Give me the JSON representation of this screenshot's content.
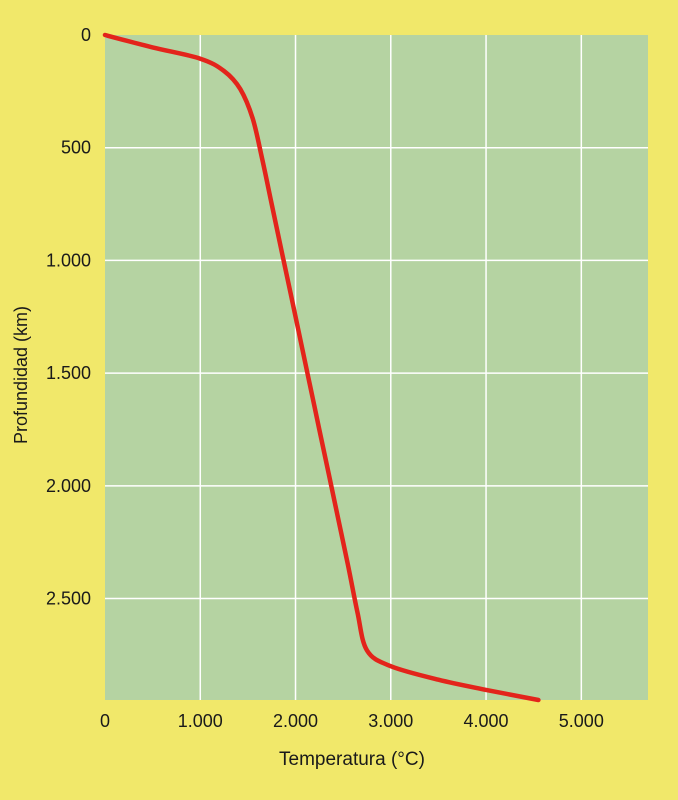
{
  "colors": {
    "page_background": "#f1e86a",
    "plot_background": "#b5d3a2",
    "grid": "#ffffff",
    "curve": "#e3241b",
    "text": "#1a1a1a"
  },
  "chart_data": {
    "type": "line",
    "xlabel": "Temperatura (°C)",
    "ylabel": "Profundidad (km)",
    "xlim": [
      0,
      5700
    ],
    "ylim": [
      0,
      2950
    ],
    "y_inverted": true,
    "grid": true,
    "x_ticks": [
      0,
      1000,
      2000,
      3000,
      4000,
      5000
    ],
    "x_tick_labels": [
      "0",
      "1.000",
      "2.000",
      "3.000",
      "4.000",
      "5.000"
    ],
    "y_ticks": [
      0,
      500,
      1000,
      1500,
      2000,
      2500
    ],
    "y_tick_labels": [
      "0",
      "500",
      "1.000",
      "1.500",
      "2.000",
      "2.500"
    ],
    "series": [
      {
        "color": "#e3241b",
        "x": [
          0,
          500,
          1000,
          1250,
          1420,
          1550,
          1650,
          1750,
          1850,
          1950,
          2050,
          2150,
          2250,
          2350,
          2450,
          2550,
          2650,
          2750,
          3000,
          3500,
          4000,
          4550
        ],
        "y": [
          0,
          55,
          105,
          160,
          240,
          370,
          550,
          750,
          950,
          1150,
          1350,
          1550,
          1750,
          1950,
          2150,
          2350,
          2560,
          2730,
          2800,
          2860,
          2905,
          2950
        ]
      }
    ]
  }
}
